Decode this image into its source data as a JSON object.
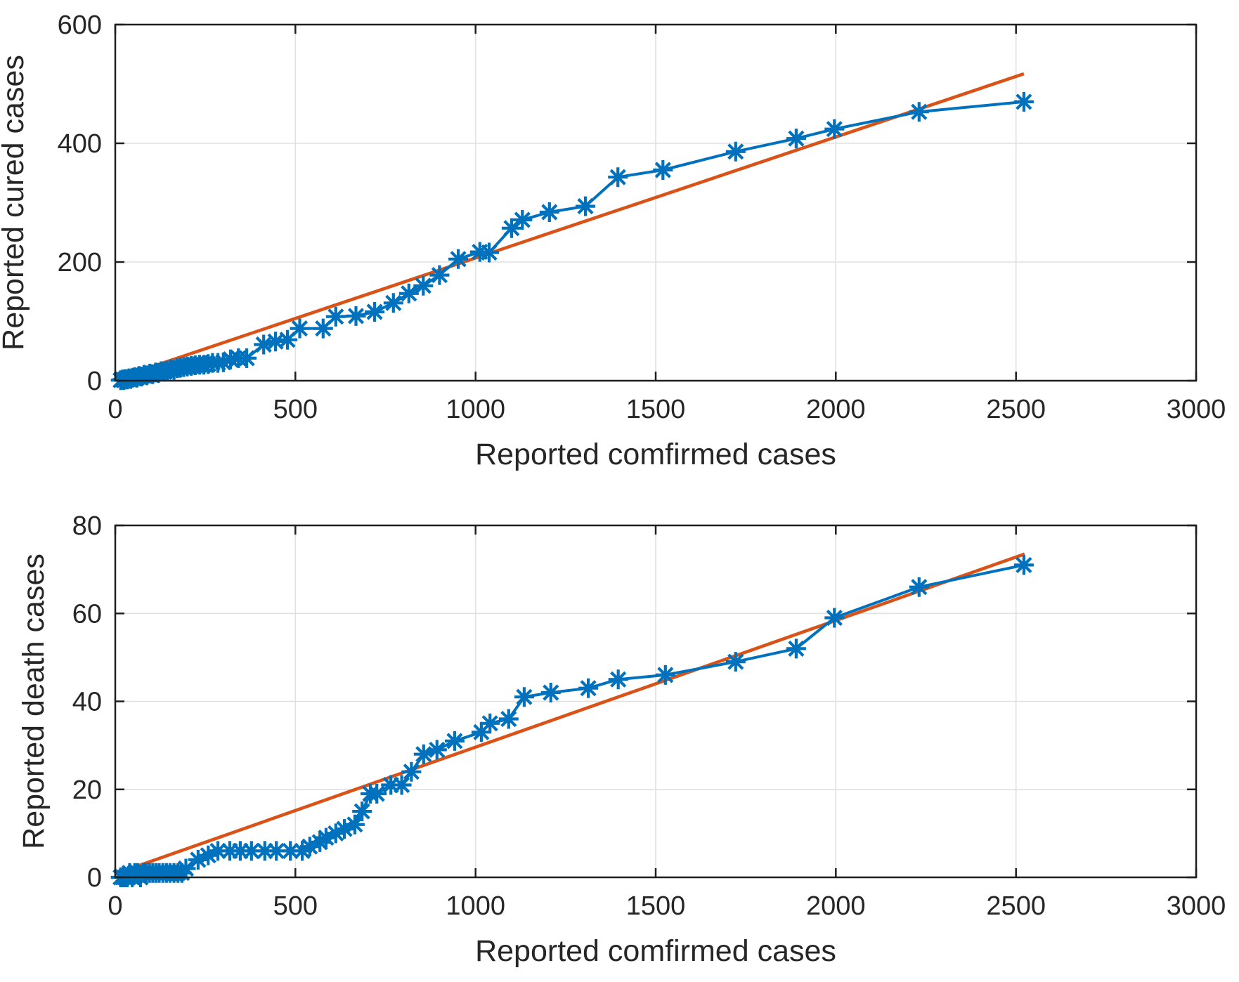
{
  "figure": {
    "background": "#ffffff",
    "description": "Two stacked scatter plots of reported cured cases and reported death cases versus reported confirmed cases, each with a linear fit line"
  },
  "style": {
    "axis_color": "#1f1f1f",
    "grid_color": "#e0e0e0",
    "tick_label_color": "#262626",
    "data_color": "#0072BD",
    "fit_color": "#D95319",
    "marker": "asterisk"
  },
  "chart_data": [
    {
      "type": "scatter",
      "title": "",
      "xlabel": "Reported comfirmed cases",
      "ylabel": "Reported cured cases",
      "xlim": [
        0,
        3000
      ],
      "ylim": [
        0,
        600
      ],
      "xticks": [
        0,
        500,
        1000,
        1500,
        2000,
        2500,
        3000
      ],
      "yticks": [
        0,
        200,
        400,
        600
      ],
      "grid": true,
      "legend": "none",
      "series": [
        {
          "name": "reported-data",
          "style": "line+asterisk",
          "color": "#0072BD",
          "points": [
            [
              15,
              1
            ],
            [
              20,
              2
            ],
            [
              24,
              1
            ],
            [
              28,
              3
            ],
            [
              33,
              2
            ],
            [
              38,
              4
            ],
            [
              43,
              3
            ],
            [
              48,
              5
            ],
            [
              54,
              6
            ],
            [
              60,
              5
            ],
            [
              66,
              8
            ],
            [
              72,
              7
            ],
            [
              80,
              10
            ],
            [
              88,
              9
            ],
            [
              96,
              12
            ],
            [
              104,
              11
            ],
            [
              112,
              14
            ],
            [
              120,
              13
            ],
            [
              128,
              16
            ],
            [
              136,
              15
            ],
            [
              145,
              17
            ],
            [
              154,
              19
            ],
            [
              163,
              18
            ],
            [
              172,
              21
            ],
            [
              181,
              22
            ],
            [
              190,
              23
            ],
            [
              200,
              24
            ],
            [
              211,
              25
            ],
            [
              222,
              26
            ],
            [
              234,
              27
            ],
            [
              246,
              27
            ],
            [
              258,
              28
            ],
            [
              270,
              30
            ],
            [
              285,
              30
            ],
            [
              300,
              31
            ],
            [
              320,
              36
            ],
            [
              342,
              38
            ],
            [
              365,
              38
            ],
            [
              412,
              61
            ],
            [
              445,
              66
            ],
            [
              478,
              69
            ],
            [
              512,
              88
            ],
            [
              577,
              88
            ],
            [
              612,
              108
            ],
            [
              668,
              109
            ],
            [
              720,
              116
            ],
            [
              772,
              131
            ],
            [
              815,
              147
            ],
            [
              855,
              160
            ],
            [
              900,
              178
            ],
            [
              952,
              205
            ],
            [
              1012,
              217
            ],
            [
              1038,
              216
            ],
            [
              1100,
              257
            ],
            [
              1130,
              271
            ],
            [
              1205,
              284
            ],
            [
              1305,
              294
            ],
            [
              1395,
              343
            ],
            [
              1520,
              355
            ],
            [
              1722,
              386
            ],
            [
              1890,
              408
            ],
            [
              1996,
              424
            ],
            [
              2231,
              453
            ],
            [
              2522,
              470
            ]
          ]
        },
        {
          "name": "linear-fit",
          "style": "line",
          "color": "#D95319",
          "points": [
            [
              25,
              8
            ],
            [
              2522,
              517
            ]
          ]
        }
      ]
    },
    {
      "type": "scatter",
      "title": "",
      "xlabel": "Reported comfirmed cases",
      "ylabel": "Reported death cases",
      "xlim": [
        0,
        3000
      ],
      "ylim": [
        0,
        80
      ],
      "xticks": [
        0,
        500,
        1000,
        1500,
        2000,
        2500,
        3000
      ],
      "yticks": [
        0,
        20,
        40,
        60,
        80
      ],
      "grid": true,
      "legend": "none",
      "series": [
        {
          "name": "reported-data",
          "style": "line+asterisk",
          "color": "#0072BD",
          "points": [
            [
              15,
              0
            ],
            [
              21,
              0
            ],
            [
              27,
              0
            ],
            [
              33,
              0
            ],
            [
              40,
              1
            ],
            [
              47,
              0
            ],
            [
              54,
              1
            ],
            [
              62,
              1
            ],
            [
              70,
              0
            ],
            [
              78,
              1
            ],
            [
              86,
              1
            ],
            [
              95,
              1
            ],
            [
              104,
              1
            ],
            [
              113,
              1
            ],
            [
              122,
              1
            ],
            [
              132,
              1
            ],
            [
              142,
              1
            ],
            [
              152,
              1
            ],
            [
              163,
              1
            ],
            [
              174,
              1
            ],
            [
              185,
              1
            ],
            [
              196,
              2
            ],
            [
              230,
              4
            ],
            [
              258,
              5
            ],
            [
              285,
              6
            ],
            [
              318,
              6
            ],
            [
              347,
              6
            ],
            [
              378,
              6
            ],
            [
              415,
              6
            ],
            [
              447,
              6
            ],
            [
              486,
              6
            ],
            [
              519,
              6
            ],
            [
              540,
              7
            ],
            [
              568,
              8
            ],
            [
              585,
              9
            ],
            [
              612,
              10
            ],
            [
              636,
              11
            ],
            [
              665,
              12
            ],
            [
              685,
              15
            ],
            [
              708,
              19
            ],
            [
              726,
              19
            ],
            [
              765,
              21
            ],
            [
              795,
              21
            ],
            [
              822,
              24
            ],
            [
              856,
              28
            ],
            [
              893,
              29
            ],
            [
              942,
              31
            ],
            [
              1016,
              33
            ],
            [
              1040,
              35
            ],
            [
              1092,
              36
            ],
            [
              1135,
              41
            ],
            [
              1209,
              42
            ],
            [
              1313,
              43
            ],
            [
              1396,
              45
            ],
            [
              1527,
              46
            ],
            [
              1722,
              49
            ],
            [
              1890,
              52
            ],
            [
              1996,
              59
            ],
            [
              2231,
              66
            ],
            [
              2522,
              71
            ]
          ]
        },
        {
          "name": "linear-fit",
          "style": "line",
          "color": "#D95319",
          "points": [
            [
              25,
              1.5
            ],
            [
              2524,
              73.5
            ]
          ]
        }
      ]
    }
  ]
}
